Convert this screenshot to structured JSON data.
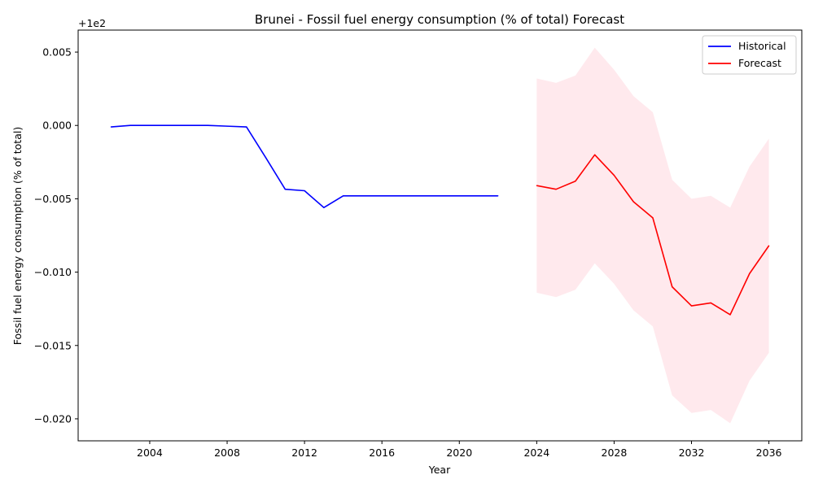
{
  "chart_data": {
    "type": "line",
    "title": "Brunei - Fossil fuel energy consumption (% of total) Forecast",
    "xlabel": "Year",
    "ylabel": "Fossil fuel energy consumption (% of total)",
    "y_offset_label": "+1e2",
    "y_offset": 100,
    "xlim": [
      2000.3,
      2037.7
    ],
    "ylim": [
      -0.0215,
      0.0065
    ],
    "x_ticks": [
      2004,
      2008,
      2012,
      2016,
      2020,
      2024,
      2028,
      2032,
      2036
    ],
    "y_ticks": [
      0.005,
      0.0,
      -0.005,
      -0.01,
      -0.015,
      -0.02
    ],
    "y_tick_labels": [
      "0.005",
      "0.000",
      "−0.005",
      "−0.010",
      "−0.015",
      "−0.020"
    ],
    "grid": false,
    "legend_position": "top-right",
    "series": [
      {
        "name": "Historical",
        "color": "#0000ff",
        "x": [
          2002,
          2003,
          2004,
          2005,
          2006,
          2007,
          2008,
          2009,
          2010,
          2011,
          2012,
          2013,
          2014,
          2015,
          2016,
          2017,
          2018,
          2019,
          2020,
          2021,
          2022
        ],
        "y": [
          -0.0001,
          0.0,
          0.0,
          0.0,
          0.0,
          0.0,
          -5e-05,
          -0.0001,
          -0.0022,
          -0.00435,
          -0.00445,
          -0.0056,
          -0.0048,
          -0.0048,
          -0.0048,
          -0.0048,
          -0.0048,
          -0.0048,
          -0.0048,
          -0.0048,
          -0.0048
        ]
      },
      {
        "name": "Forecast",
        "color": "#ff0000",
        "x": [
          2024,
          2025,
          2026,
          2027,
          2028,
          2029,
          2030,
          2031,
          2032,
          2033,
          2034,
          2035,
          2036
        ],
        "y": [
          -0.0041,
          -0.00435,
          -0.0038,
          -0.002,
          -0.0034,
          -0.0052,
          -0.0063,
          -0.011,
          -0.0123,
          -0.0121,
          -0.0129,
          -0.0101,
          -0.0082
        ],
        "lower": [
          -0.0114,
          -0.0117,
          -0.0112,
          -0.0094,
          -0.0108,
          -0.0126,
          -0.0137,
          -0.0184,
          -0.0196,
          -0.0194,
          -0.0203,
          -0.0174,
          -0.0155
        ],
        "upper": [
          0.0032,
          0.0029,
          0.0034,
          0.0053,
          0.0038,
          0.002,
          0.0009,
          -0.0037,
          -0.005,
          -0.0048,
          -0.0056,
          -0.0028,
          -0.0009
        ],
        "band_color": "#ffc0cb"
      }
    ]
  }
}
